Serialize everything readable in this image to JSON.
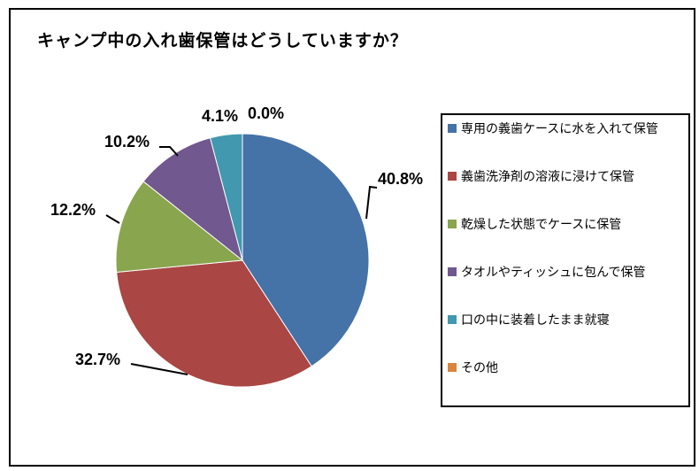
{
  "chart_data": {
    "type": "pie",
    "title": "キャンプ中の入れ歯保管はどうしていますか？",
    "legend_position": "right",
    "start_angle_deg": 0,
    "direction": "clockwise",
    "total": 100,
    "series": [
      {
        "label": "専用の義歯ケースに水を入れて保管",
        "value": 40.8,
        "percent_label": "40.8%",
        "color": "#4572A7"
      },
      {
        "label": "義歯洗浄剤の溶液に浸けて保管",
        "value": 32.7,
        "percent_label": "32.7%",
        "color": "#AA4643"
      },
      {
        "label": "乾燥した状態でケースに保管",
        "value": 12.2,
        "percent_label": "12.2%",
        "color": "#89A54E"
      },
      {
        "label": "タオルやティッシュに包んで保管",
        "value": 10.2,
        "percent_label": "10.2%",
        "color": "#71588F"
      },
      {
        "label": "口の中に装着したまま就寝",
        "value": 4.1,
        "percent_label": "4.1%",
        "color": "#4198AF"
      },
      {
        "label": "その他",
        "value": 0.0,
        "percent_label": "0.0%",
        "color": "#DB843D"
      }
    ]
  },
  "frame": {
    "border_color": "#000000",
    "background": "#ffffff"
  }
}
